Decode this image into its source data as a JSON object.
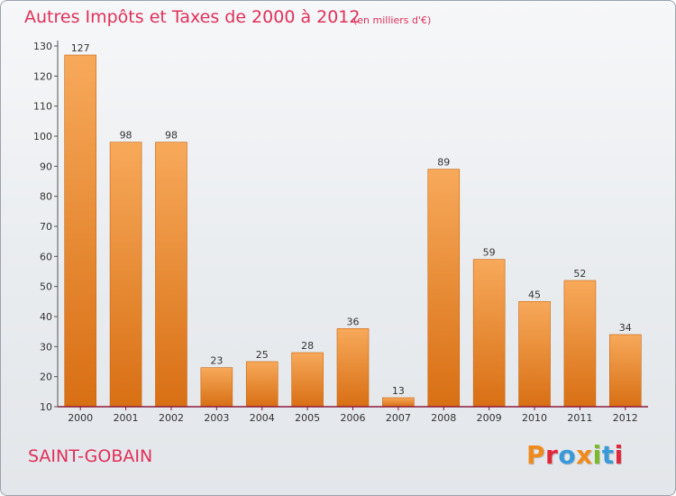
{
  "header": {
    "title": "Autres Impôts et Taxes de 2000 à 2012",
    "subtitle": "(en milliers d'€)"
  },
  "footer": {
    "commune": "SAINT-GOBAIN",
    "brand": "Proxiti",
    "brand_colors": [
      "#f08a1c",
      "#e2263b",
      "#3a9ad9",
      "#f08a1c",
      "#7bb928",
      "#3a9ad9",
      "#e2263b"
    ]
  },
  "colors": {
    "title": "#e0305a",
    "bar_top": "#f7a95a",
    "bar_bottom": "#d86f14",
    "axis": "#8b1a3a"
  },
  "chart_data": {
    "type": "bar",
    "categories": [
      "2000",
      "2001",
      "2002",
      "2003",
      "2004",
      "2005",
      "2006",
      "2007",
      "2008",
      "2009",
      "2010",
      "2011",
      "2012"
    ],
    "values": [
      127,
      98,
      98,
      23,
      25,
      28,
      36,
      13,
      89,
      59,
      45,
      52,
      34
    ],
    "ylim": [
      10,
      130
    ],
    "yticks": [
      10,
      20,
      30,
      40,
      50,
      60,
      70,
      80,
      90,
      100,
      110,
      120,
      130
    ],
    "data_labels": true,
    "grid": false
  }
}
